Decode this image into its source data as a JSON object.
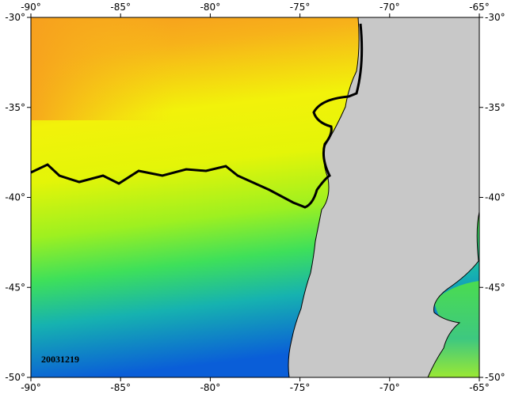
{
  "map": {
    "lon_ticks": [
      {
        "value": -90,
        "label": "-90°"
      },
      {
        "value": -85,
        "label": "-85°"
      },
      {
        "value": -80,
        "label": "-80°"
      },
      {
        "value": -75,
        "label": "-75°"
      },
      {
        "value": -70,
        "label": "-70°"
      },
      {
        "value": -65,
        "label": "-65°"
      }
    ],
    "lat_ticks": [
      {
        "value": -30,
        "label": "-30°"
      },
      {
        "value": -35,
        "label": "-35°"
      },
      {
        "value": -40,
        "label": "-40°"
      },
      {
        "value": -45,
        "label": "-45°"
      },
      {
        "value": -50,
        "label": "-50°"
      }
    ],
    "lon_range": [
      -90,
      -65
    ],
    "lat_range": [
      -30,
      -50
    ],
    "date_label": "20031219"
  }
}
